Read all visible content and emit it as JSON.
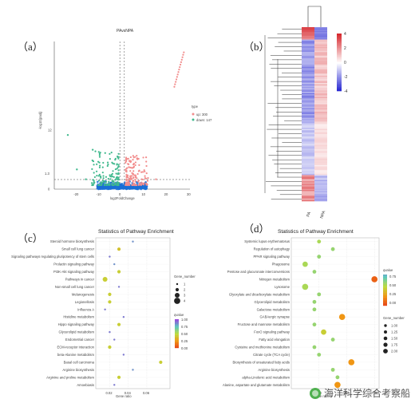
{
  "panel_labels": {
    "a": "（a）",
    "b": "（b）",
    "c": "（c）",
    "d": "（d）"
  },
  "colors": {
    "up": "#f28d8d",
    "down": "#41b98e",
    "volcano_bg": "#1a6fd6",
    "nonsig": "#888888",
    "heat_high": "#d7282e",
    "heat_low": "#1f1fd0",
    "heat_mid": "#ffffff"
  },
  "watermark": {
    "text": "海洋科学综合考察船",
    "icon": "wechat-icon"
  },
  "chart_data": [
    {
      "type": "scatter",
      "panel": "a",
      "title": "PAvsNPA",
      "xlabel": "log2FoldChange",
      "ylabel": "-log10(padj)",
      "xlim": [
        -30,
        30
      ],
      "ylim": [
        0,
        30
      ],
      "xticks": [
        "-20",
        "-10",
        "0",
        "10",
        "20",
        "30"
      ],
      "yticks": [
        "0",
        "12"
      ],
      "ytick_values": [
        0,
        12
      ],
      "threshold_y_label": "1.3",
      "legend_title": "type",
      "legend": [
        {
          "name": "up: 300",
          "color": "#f28d8d"
        },
        {
          "name": "down: 147",
          "color": "#41b98e"
        }
      ],
      "up_line_points": [
        [
          23.1,
          20.8
        ],
        [
          23.4,
          21.3
        ],
        [
          23.7,
          21.8
        ],
        [
          24.0,
          22.3
        ],
        [
          24.3,
          22.8
        ],
        [
          24.6,
          23.3
        ],
        [
          24.9,
          23.8
        ],
        [
          25.2,
          24.3
        ],
        [
          25.5,
          24.8
        ],
        [
          25.8,
          25.3
        ],
        [
          26.1,
          25.8
        ],
        [
          26.4,
          26.3
        ],
        [
          26.7,
          26.8
        ],
        [
          27.0,
          27.3
        ],
        [
          27.3,
          27.8
        ]
      ],
      "notable_points": [
        {
          "x": -24,
          "y": 11,
          "type": "down"
        },
        {
          "x": -20,
          "y": 4,
          "type": "down"
        },
        {
          "x": -13,
          "y": 8,
          "type": "down"
        },
        {
          "x": -16,
          "y": 2,
          "type": "down"
        },
        {
          "x": 5,
          "y": 5,
          "type": "up"
        },
        {
          "x": 15,
          "y": 2,
          "type": "up"
        }
      ]
    },
    {
      "type": "heatmap",
      "panel": "b",
      "columns": [
        "PA",
        "NPA"
      ],
      "scale_ticks": [
        "4",
        "2",
        "0",
        "-2",
        "-4"
      ],
      "scale_values": [
        4,
        2,
        0,
        -2,
        -4
      ],
      "rows": 140
    },
    {
      "type": "scatter",
      "panel": "c",
      "title": "Statistics of Pathway Enrichment",
      "xlabel": "Gene ratio",
      "xlim": [
        0.005,
        0.085
      ],
      "xticks": [
        "0.02",
        "0.04",
        "0.06"
      ],
      "xtick_values": [
        0.02,
        0.04,
        0.06
      ],
      "categories": [
        "Steroid hormone biosynthesis",
        "Small cell lung cancer",
        "Signaling pathways regulating pluripotency of stem cells",
        "Prolactin signaling pathway",
        "PI3K-Akt signaling pathway",
        "Pathways in cancer",
        "Non-small cell lung cancer",
        "Melanogenesis",
        "Legionellosis",
        "Influenza A",
        "Histidine metabolism",
        "Hippo signaling pathway",
        "Glycerolipid metabolism",
        "Endometrial cancer",
        "ECM-receptor interaction",
        "beta-Alanine metabolism",
        "Basal cell carcinoma",
        "Arginine biosynthesis",
        "Arginine and proline metabolism",
        "Amoebiasis"
      ],
      "points": [
        {
          "x": 0.045,
          "size": 1,
          "qvalue": 0.85
        },
        {
          "x": 0.03,
          "size": 2,
          "qvalue": 0.4
        },
        {
          "x": 0.02,
          "size": 1,
          "qvalue": 0.9
        },
        {
          "x": 0.025,
          "size": 1,
          "qvalue": 0.85
        },
        {
          "x": 0.03,
          "size": 2,
          "qvalue": 0.45
        },
        {
          "x": 0.015,
          "size": 3,
          "qvalue": 0.45
        },
        {
          "x": 0.03,
          "size": 1,
          "qvalue": 0.9
        },
        {
          "x": 0.02,
          "size": 2,
          "qvalue": 0.45
        },
        {
          "x": 0.02,
          "size": 2,
          "qvalue": 0.45
        },
        {
          "x": 0.015,
          "size": 1,
          "qvalue": 0.9
        },
        {
          "x": 0.035,
          "size": 1,
          "qvalue": 0.9
        },
        {
          "x": 0.03,
          "size": 2,
          "qvalue": 0.45
        },
        {
          "x": 0.02,
          "size": 1,
          "qvalue": 0.9
        },
        {
          "x": 0.025,
          "size": 1,
          "qvalue": 0.9
        },
        {
          "x": 0.02,
          "size": 2,
          "qvalue": 0.45
        },
        {
          "x": 0.035,
          "size": 1,
          "qvalue": 0.9
        },
        {
          "x": 0.075,
          "size": 2,
          "qvalue": 0.45
        },
        {
          "x": 0.045,
          "size": 1,
          "qvalue": 0.85
        },
        {
          "x": 0.03,
          "size": 2,
          "qvalue": 0.45
        },
        {
          "x": 0.025,
          "size": 1,
          "qvalue": 0.9
        }
      ],
      "size_legend_title": "Gene_number",
      "size_legend": [
        "1",
        "2",
        "3",
        "4"
      ],
      "color_legend_title": "qvalue",
      "color_legend_ticks": [
        "1.00",
        "0.75",
        "0.50",
        "0.25",
        "0.00"
      ]
    },
    {
      "type": "scatter",
      "panel": "d",
      "title": "Statistics of Pathway Enrichment",
      "xlabel": "Gene ratio",
      "xlim": [
        0.0,
        0.095
      ],
      "xticks": [
        "0.03",
        "0.06",
        "0.09"
      ],
      "xtick_values": [
        0.03,
        0.06,
        0.09
      ],
      "categories": [
        "Systemic lupus erythematosus",
        "Regulation of autophagy",
        "PPAR signaling pathway",
        "Phagosome",
        "Pentose and glucuronate interconversions",
        "Nitrogen metabolism",
        "Lysosome",
        "Glyoxylate and dicarboxylate metabolism",
        "Glycerolipid metabolism",
        "Galactose metabolism",
        "GABAergic synapse",
        "Fructose and mannose metabolism",
        "FoxO signaling pathway",
        "Fatty acid elongation",
        "Cysteine and methionine metabolism",
        "Citrate cycle (TCA cycle)",
        "Biosynthesis of unsaturated fatty acids",
        "Arginine biosynthesis",
        "alpha-Linolenic acid metabolism",
        "Alanine, aspartate and glutamate metabolism"
      ],
      "points": [
        {
          "x": 0.03,
          "size": 1.0,
          "qvalue": 0.55
        },
        {
          "x": 0.045,
          "size": 1.0,
          "qvalue": 0.6
        },
        {
          "x": 0.03,
          "size": 1.0,
          "qvalue": 0.6
        },
        {
          "x": 0.015,
          "size": 1.5,
          "qvalue": 0.55
        },
        {
          "x": 0.025,
          "size": 1.0,
          "qvalue": 0.6
        },
        {
          "x": 0.09,
          "size": 1.75,
          "qvalue": 0.1
        },
        {
          "x": 0.015,
          "size": 1.75,
          "qvalue": 0.55
        },
        {
          "x": 0.03,
          "size": 1.0,
          "qvalue": 0.6
        },
        {
          "x": 0.025,
          "size": 1.0,
          "qvalue": 0.6
        },
        {
          "x": 0.025,
          "size": 1.0,
          "qvalue": 0.6
        },
        {
          "x": 0.055,
          "size": 1.75,
          "qvalue": 0.25
        },
        {
          "x": 0.025,
          "size": 1.0,
          "qvalue": 0.6
        },
        {
          "x": 0.035,
          "size": 1.5,
          "qvalue": 0.45
        },
        {
          "x": 0.045,
          "size": 1.0,
          "qvalue": 0.6
        },
        {
          "x": 0.025,
          "size": 1.0,
          "qvalue": 0.6
        },
        {
          "x": 0.03,
          "size": 1.0,
          "qvalue": 0.6
        },
        {
          "x": 0.065,
          "size": 1.75,
          "qvalue": 0.25
        },
        {
          "x": 0.045,
          "size": 1.0,
          "qvalue": 0.6
        },
        {
          "x": 0.05,
          "size": 1.0,
          "qvalue": 0.6
        },
        {
          "x": 0.05,
          "size": 1.75,
          "qvalue": 0.25
        }
      ],
      "color_legend_title": "qvalue",
      "color_legend_ticks": [
        "0.75",
        "0.50",
        "0.25",
        "0.00"
      ],
      "size_legend_title": "Gene_number",
      "size_legend": [
        "1.00",
        "1.25",
        "1.50",
        "1.75",
        "2.00"
      ]
    }
  ]
}
